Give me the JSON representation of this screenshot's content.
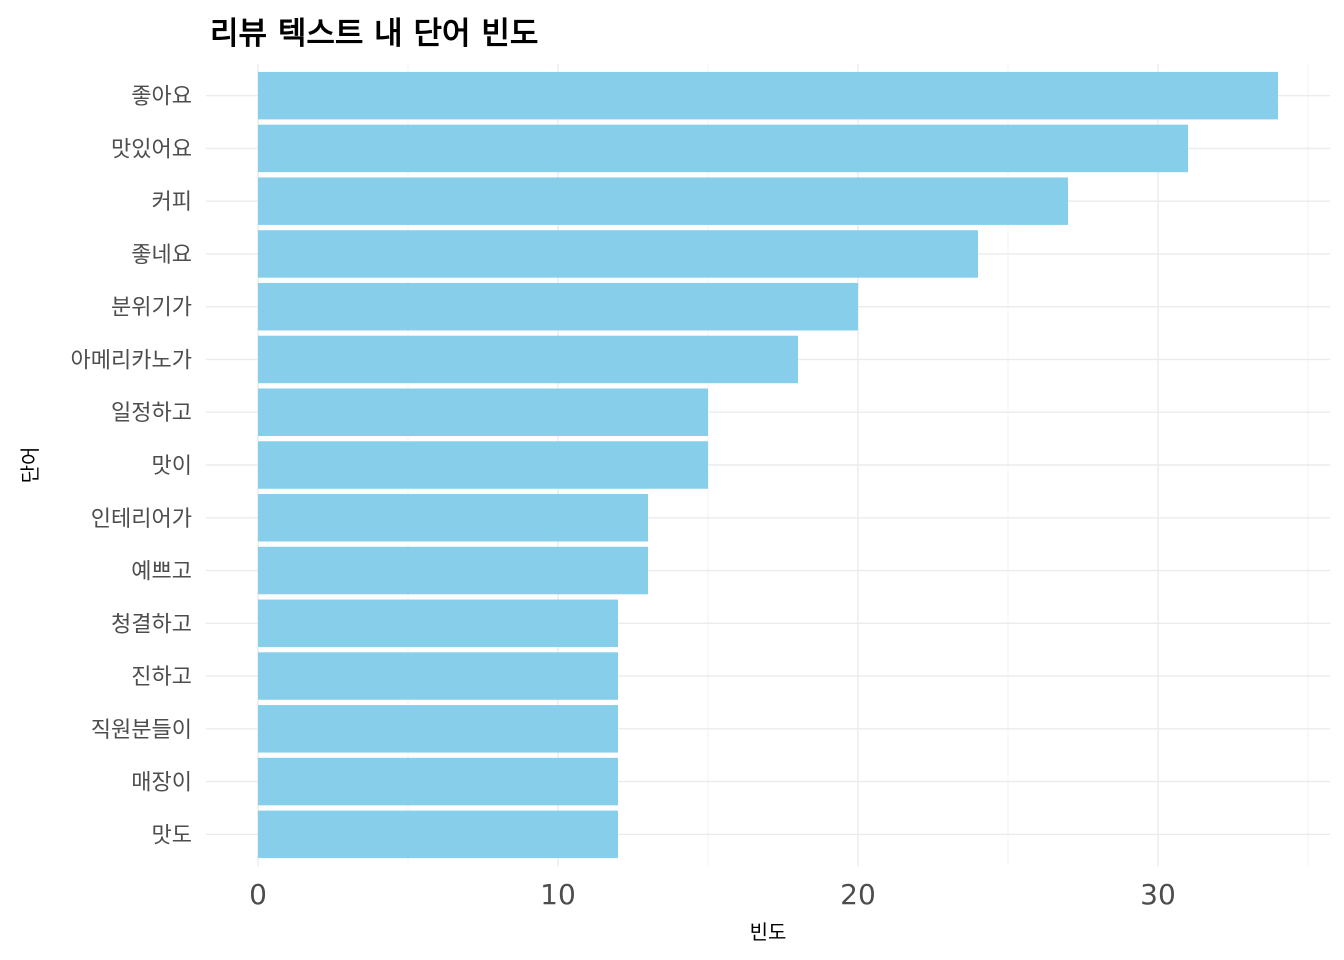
{
  "chart_data": {
    "type": "bar",
    "orientation": "horizontal",
    "title": "리뷰 텍스트 내 단어 빈도",
    "xlabel": "빈도",
    "ylabel": "단어",
    "categories": [
      "좋아요",
      "맛있어요",
      "커피",
      "좋네요",
      "분위기가",
      "아메리카노가",
      "일정하고",
      "맛이",
      "인테리어가",
      "예쁘고",
      "청결하고",
      "진하고",
      "직원분들이",
      "매장이",
      "맛도"
    ],
    "values": [
      34,
      31,
      27,
      24,
      20,
      18,
      15,
      15,
      13,
      13,
      12,
      12,
      12,
      12,
      12
    ],
    "xlim": [
      0,
      35
    ],
    "xticks": [
      0,
      10,
      20,
      30
    ],
    "bar_color": "#87CEEB",
    "grid": true
  }
}
